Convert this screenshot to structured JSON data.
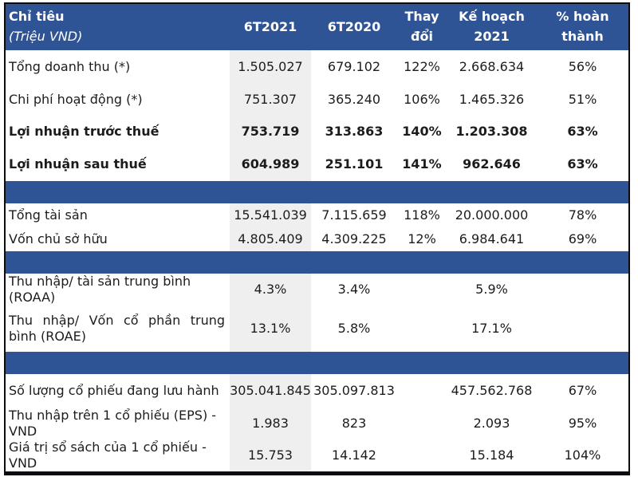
{
  "colors": {
    "header_bg": "#2F5496",
    "separator_bg": "#2F5496",
    "column_band_bg": "#EFEFEF",
    "outer_border": "#0B0B12",
    "header_text": "#FFFFFF",
    "body_text": "#1C1C1C"
  },
  "chart_data": {
    "type": "table",
    "title": "",
    "header": {
      "label_line1": "Chỉ tiêu",
      "label_line2": "(Triệu VND)",
      "columns": [
        "6T2021",
        "6T2020",
        "Thay đổi",
        "Kế hoạch 2021",
        "% hoàn thành"
      ]
    },
    "sections": [
      {
        "rows": [
          {
            "label": "Tổng doanh thu (*)",
            "values": [
              "1.505.027",
              "679.102",
              "122%",
              "2.668.634",
              "56%"
            ]
          },
          {
            "label": "Chi phí hoạt động (*)",
            "values": [
              "751.307",
              "365.240",
              "106%",
              "1.465.326",
              "51%"
            ]
          },
          {
            "label": "Lợi nhuận trước thuế",
            "values": [
              "753.719",
              "313.863",
              "140%",
              "1.203.308",
              "63%"
            ]
          },
          {
            "label": "Lợi nhuận sau thuế",
            "values": [
              "604.989",
              "251.101",
              "141%",
              "962.646",
              "63%"
            ]
          }
        ]
      },
      {
        "rows": [
          {
            "label": "Tổng tài sản",
            "values": [
              "15.541.039",
              "7.115.659",
              "118%",
              "20.000.000",
              "78%"
            ]
          },
          {
            "label": "Vốn chủ sở hữu",
            "values": [
              "4.805.409",
              "4.309.225",
              "12%",
              "6.984.641",
              "69%"
            ]
          }
        ]
      },
      {
        "rows": [
          {
            "label": "Thu nhập/ tài sản trung bình (ROAA)",
            "values": [
              "4.3%",
              "3.4%",
              "",
              "5.9%",
              ""
            ]
          },
          {
            "label": "Thu nhập/ Vốn cổ phần trung bình (ROAE)",
            "values": [
              "13.1%",
              "5.8%",
              "",
              "17.1%",
              ""
            ]
          }
        ]
      },
      {
        "rows": [
          {
            "label": "Số lượng cổ phiếu đang lưu hành",
            "values": [
              "305.041.845",
              "305.097.813",
              "",
              "457.562.768",
              "67%"
            ]
          },
          {
            "label": "Thu nhập trên 1 cổ phiếu (EPS) - VND",
            "values": [
              "1.983",
              "823",
              "",
              "2.093",
              "95%"
            ]
          },
          {
            "label": "Giá trị sổ sách của 1 cổ phiếu - VND",
            "values": [
              "15.753",
              "14.142",
              "",
              "15.184",
              "104%"
            ]
          }
        ]
      }
    ]
  }
}
